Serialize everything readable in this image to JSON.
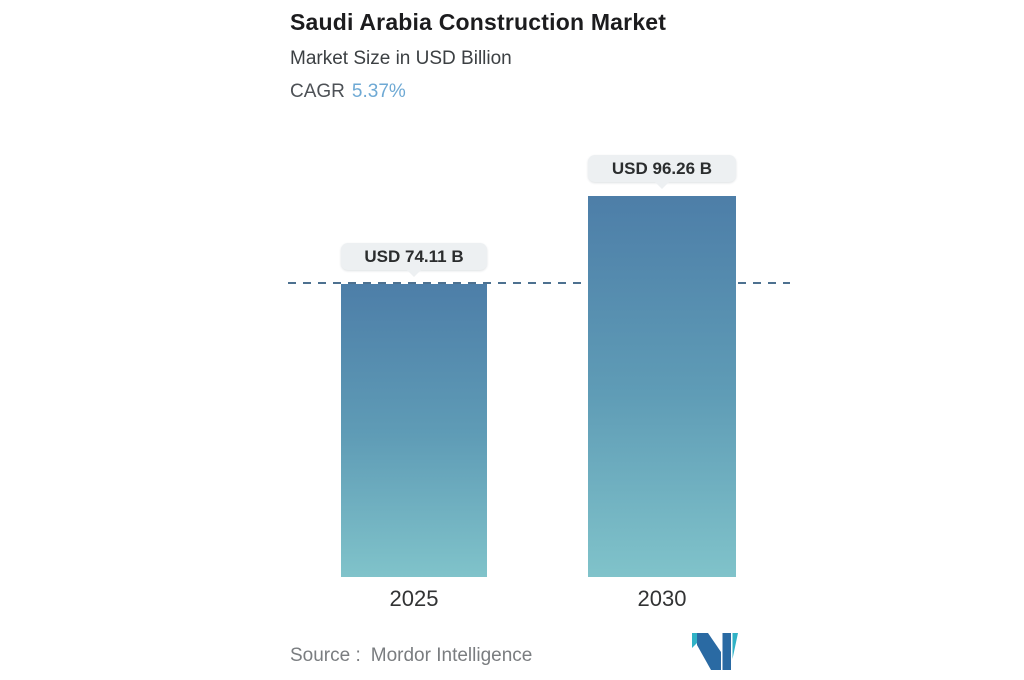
{
  "header": {
    "title": "Saudi Arabia Construction Market",
    "subtitle": "Market Size in USD Billion",
    "cagr_label": "CAGR",
    "cagr_value": "5.37%"
  },
  "chart_data": {
    "type": "bar",
    "title": "Saudi Arabia Construction Market",
    "subtitle": "Market Size in USD Billion",
    "cagr_pct": 5.37,
    "categories": [
      "2025",
      "2030"
    ],
    "values": [
      74.11,
      96.26
    ],
    "value_labels": [
      "USD 74.11 B",
      "USD 96.26 B"
    ],
    "unit": "USD Billion",
    "xlabel": "",
    "ylabel": "",
    "grid": false,
    "legend": false,
    "reference_line": {
      "value": 74.11,
      "style": "dashed",
      "color": "#4d7190"
    },
    "bar_gradient": {
      "top": "#4d7ea8",
      "bottom": "#80c3ca"
    }
  },
  "footer": {
    "source_label": "Source :",
    "source_value": "Mordor Intelligence",
    "logo_name": "mordor-intelligence-logo"
  },
  "colors": {
    "title_text": "#1c1c1e",
    "subtitle_text": "#3c4043",
    "cagr_accent": "#6ea9d4",
    "tooltip_bg": "#edf0f2",
    "tooltip_text": "#2b2d2e",
    "dashed_line": "#4d7190",
    "source_text": "#7a7d80",
    "logo_teal": "#30b2c6",
    "logo_blue": "#2a6aa3"
  }
}
